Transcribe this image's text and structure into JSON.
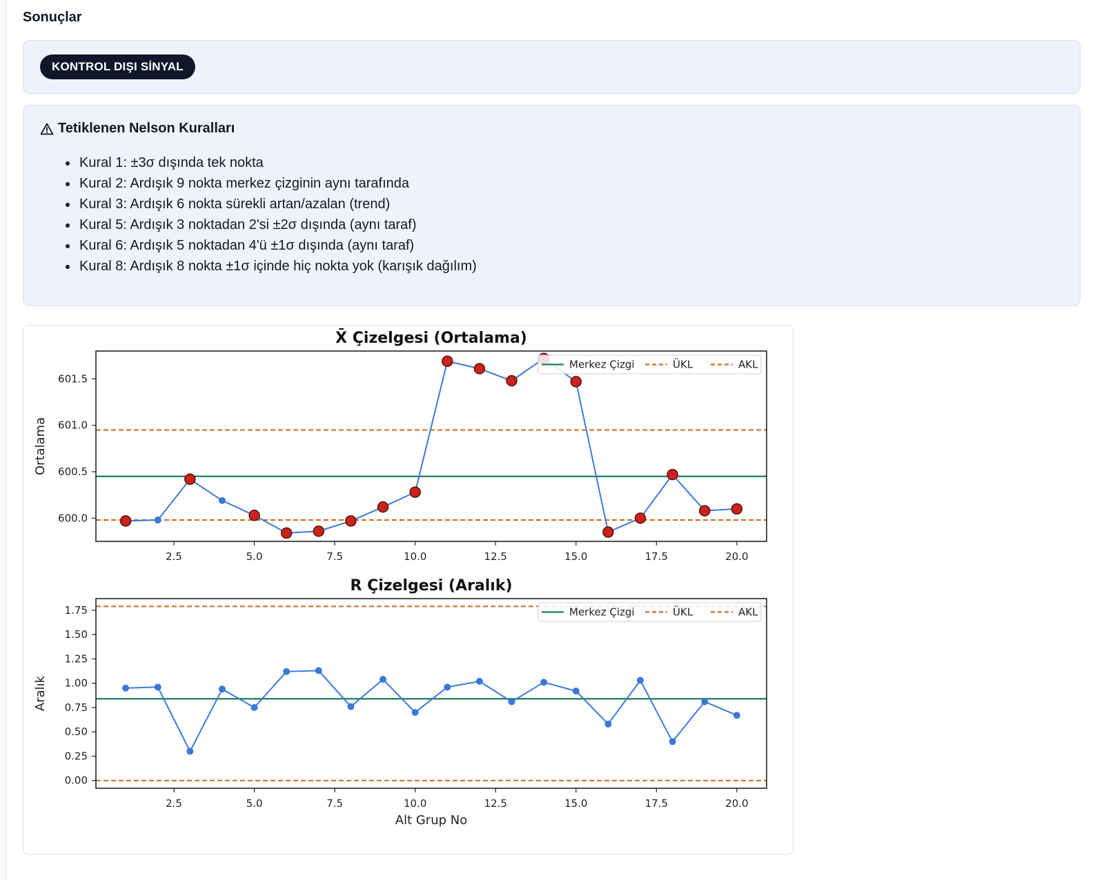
{
  "page": {
    "section_title": "Sonuçlar",
    "status_badge": "KONTROL DIŞI SİNYAL",
    "rules_heading": "Tetiklenen Nelson Kuralları",
    "rules_icon": "warning-triangle-icon",
    "rules": [
      "Kural 1: ±3σ dışında tek nokta",
      "Kural 2: Ardışık 9 nokta merkez çizginin aynı tarafında",
      "Kural 3: Ardışık 6 nokta sürekli artan/azalan (trend)",
      "Kural 5: Ardışık 3 noktadan 2'si ±2σ dışında (aynı taraf)",
      "Kural 6: Ardışık 5 noktadan 4'ü ±1σ dışında (aynı taraf)",
      "Kural 8: Ardışık 8 nokta ±1σ içinde hiç nokta yok (karışık dağılım)"
    ]
  },
  "colors": {
    "series": "#3c78d8",
    "center_line": "#1a7a5e",
    "limit_line": "#d2691e",
    "violation_fill": "#c8241c",
    "violation_edge": "#5a0f0a",
    "badge_bg": "#0f172a",
    "panel_bg": "#eef2fb"
  },
  "chart_data": [
    {
      "type": "line",
      "title": "X̄ Çizelgesi (Ortalama)",
      "xlabel": "",
      "ylabel": "Ortalama",
      "xlim": [
        0.075,
        20.925
      ],
      "ylim": [
        599.75,
        601.8
      ],
      "xticks": [
        2.5,
        5.0,
        7.5,
        10.0,
        12.5,
        15.0,
        17.5,
        20.0
      ],
      "xtick_labels": [
        "2.5",
        "5.0",
        "7.5",
        "10.0",
        "12.5",
        "15.0",
        "17.5",
        "20.0"
      ],
      "yticks": [
        600.0,
        600.5,
        601.0,
        601.5
      ],
      "ytick_labels": [
        "600.0",
        "600.5",
        "601.0",
        "601.5"
      ],
      "center_line": 600.45,
      "ucl": 600.95,
      "lcl": 599.98,
      "legend": [
        "Merkez Çizgi",
        "ÜKL",
        "AKL"
      ],
      "legend_position": "top-right",
      "x": [
        1,
        2,
        3,
        4,
        5,
        6,
        7,
        8,
        9,
        10,
        11,
        12,
        13,
        14,
        15,
        16,
        17,
        18,
        19,
        20
      ],
      "values": [
        599.97,
        599.98,
        600.42,
        600.19,
        600.03,
        599.84,
        599.86,
        599.97,
        600.12,
        600.28,
        601.69,
        601.61,
        601.48,
        601.72,
        601.47,
        599.85,
        600.0,
        600.47,
        600.08,
        600.1
      ],
      "violations": [
        1,
        3,
        5,
        6,
        7,
        8,
        9,
        10,
        11,
        12,
        13,
        14,
        15,
        16,
        17,
        18,
        19,
        20
      ]
    },
    {
      "type": "line",
      "title": "R Çizelgesi (Aralık)",
      "xlabel": "Alt Grup No",
      "ylabel": "Aralık",
      "xlim": [
        0.075,
        20.925
      ],
      "ylim": [
        -0.08,
        1.87
      ],
      "xticks": [
        2.5,
        5.0,
        7.5,
        10.0,
        12.5,
        15.0,
        17.5,
        20.0
      ],
      "xtick_labels": [
        "2.5",
        "5.0",
        "7.5",
        "10.0",
        "12.5",
        "15.0",
        "17.5",
        "20.0"
      ],
      "yticks": [
        0.0,
        0.25,
        0.5,
        0.75,
        1.0,
        1.25,
        1.5,
        1.75
      ],
      "ytick_labels": [
        "0.00",
        "0.25",
        "0.50",
        "0.75",
        "1.00",
        "1.25",
        "1.50",
        "1.75"
      ],
      "center_line": 0.84,
      "ucl": 1.79,
      "lcl": 0.0,
      "legend": [
        "Merkez Çizgi",
        "ÜKL",
        "AKL"
      ],
      "legend_position": "top-right",
      "x": [
        1,
        2,
        3,
        4,
        5,
        6,
        7,
        8,
        9,
        10,
        11,
        12,
        13,
        14,
        15,
        16,
        17,
        18,
        19,
        20
      ],
      "values": [
        0.95,
        0.96,
        0.3,
        0.94,
        0.75,
        1.12,
        1.13,
        0.76,
        1.04,
        0.7,
        0.96,
        1.02,
        0.81,
        1.01,
        0.92,
        0.58,
        1.03,
        0.4,
        0.81,
        0.67
      ],
      "violations": []
    }
  ]
}
